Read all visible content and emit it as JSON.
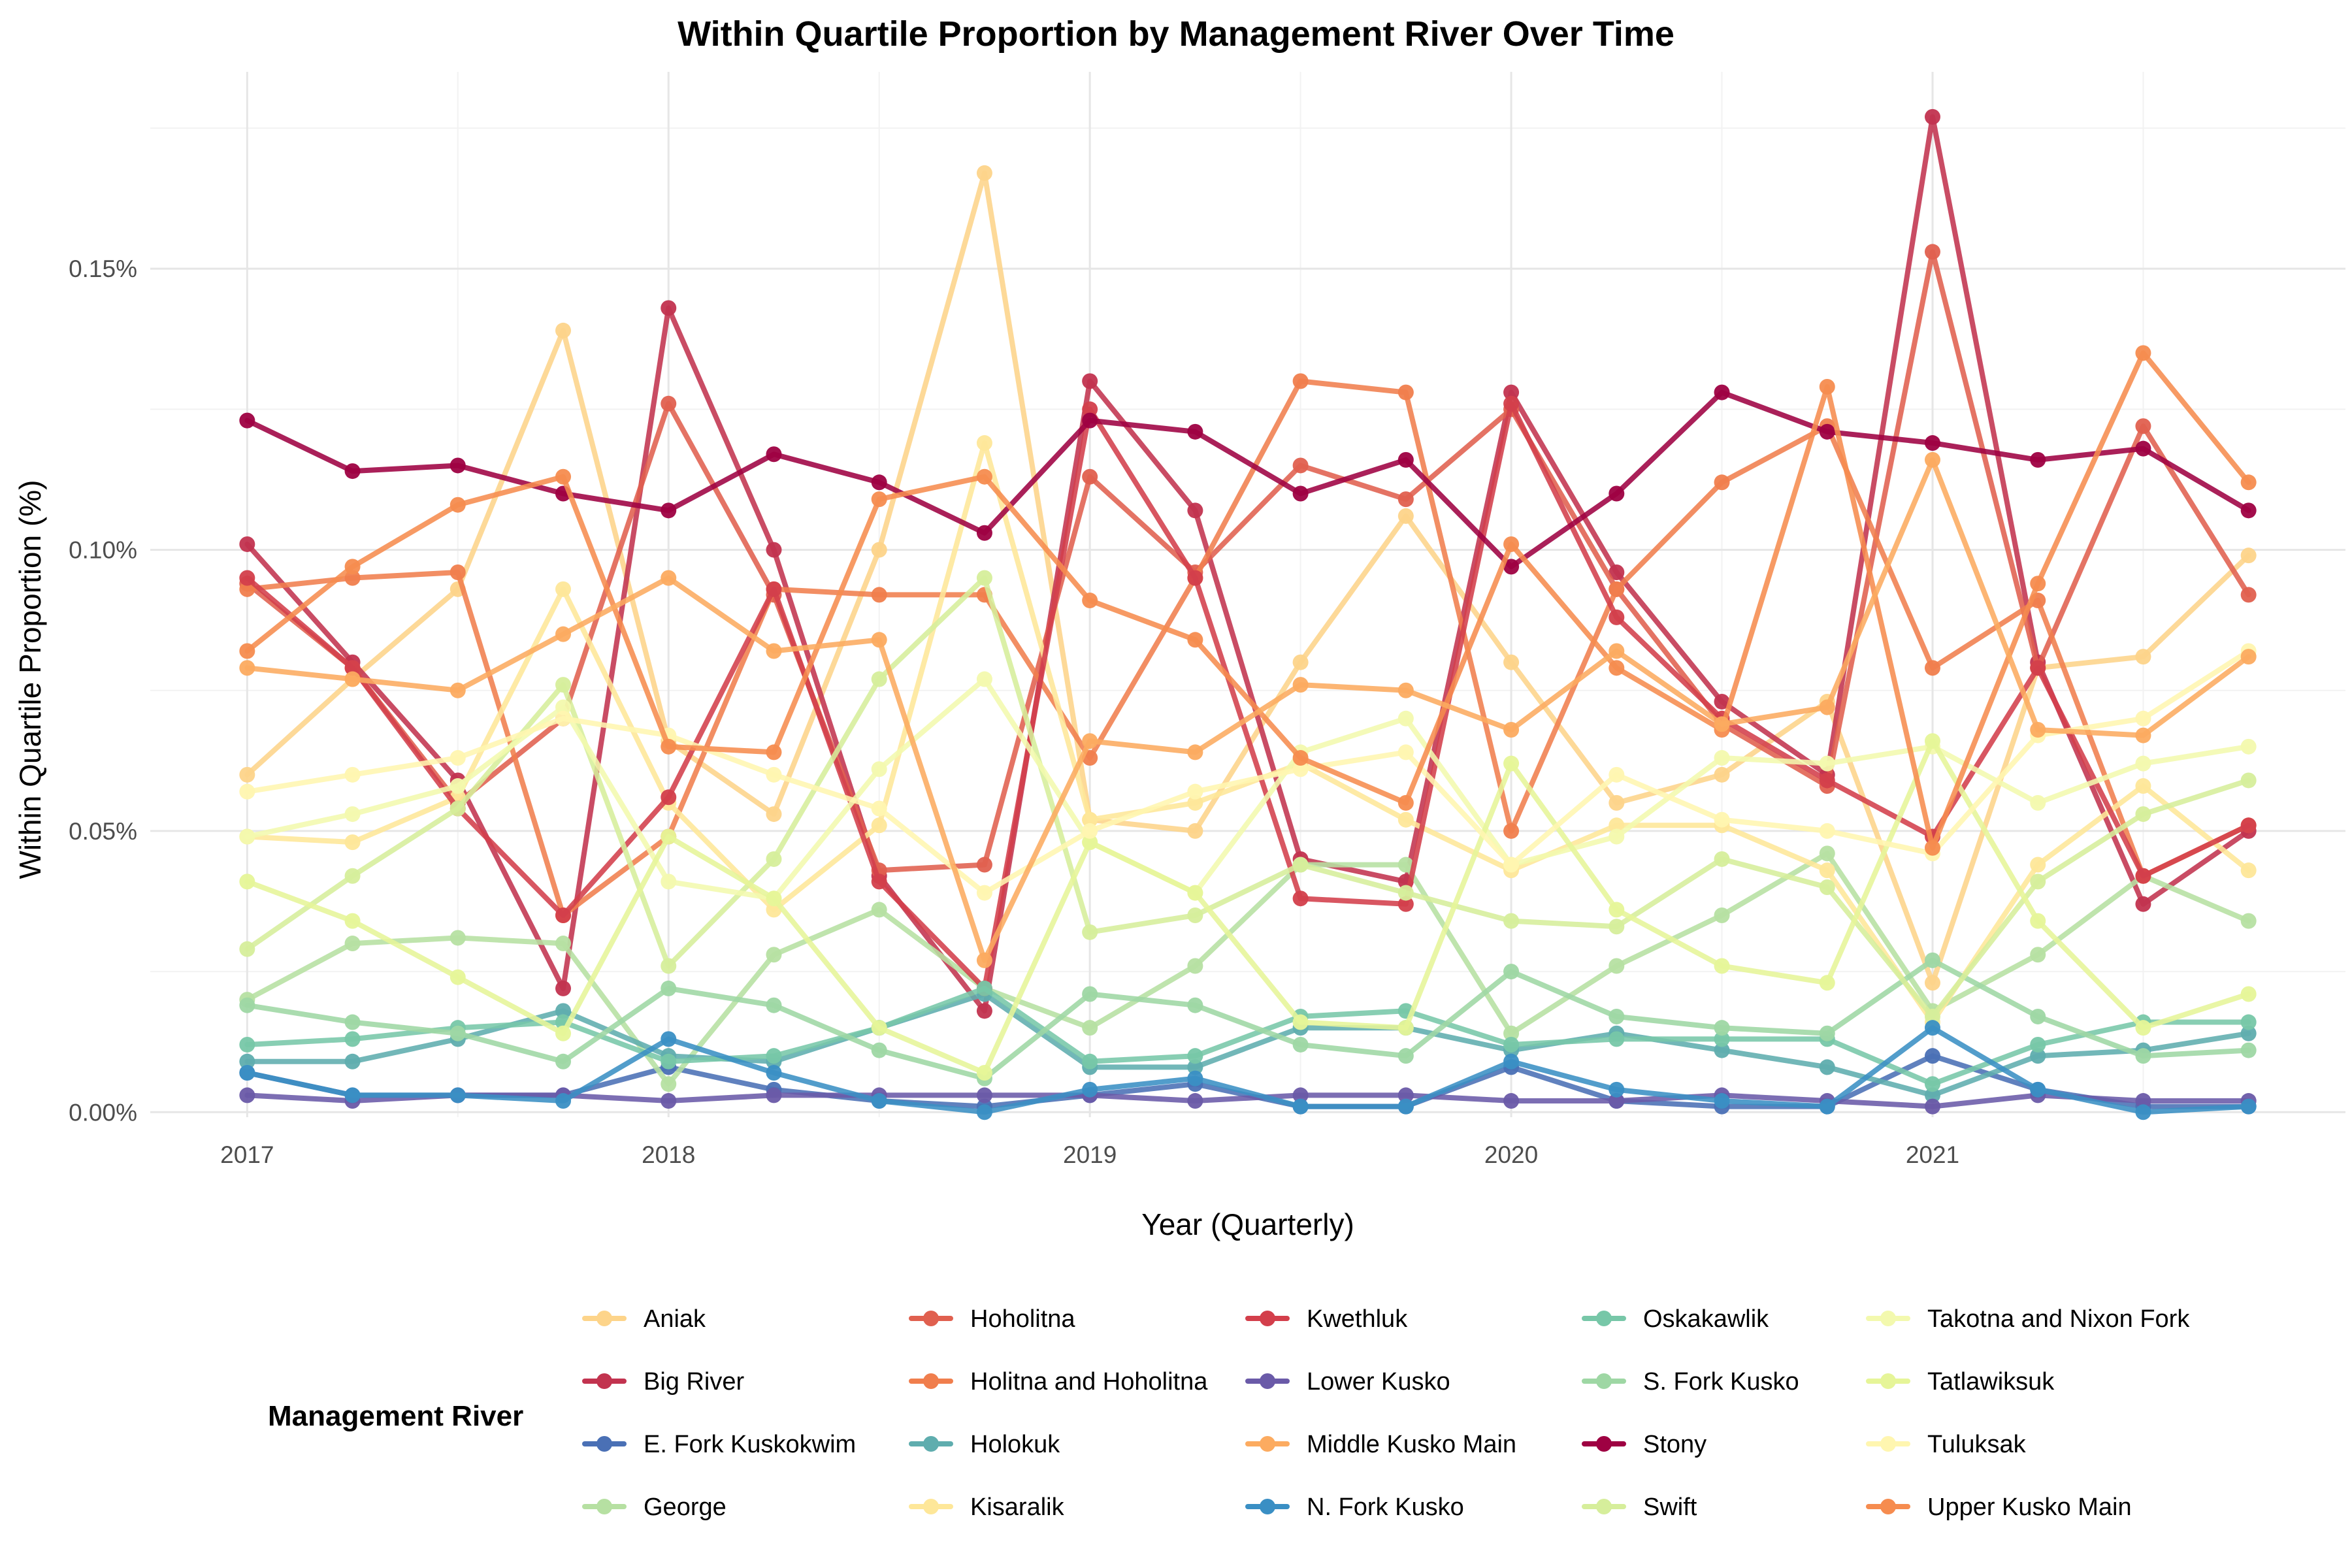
{
  "chart_data": {
    "type": "line",
    "title": "Within Quartile Proportion by Management River Over Time",
    "xlabel": "Year (Quarterly)",
    "ylabel": "Within Quartile Proportion (%)",
    "legend_title": "Management River",
    "legend_position": "bottom",
    "grid": true,
    "x": [
      2017.0,
      2017.25,
      2017.5,
      2017.75,
      2018.0,
      2018.25,
      2018.5,
      2018.75,
      2019.0,
      2019.25,
      2019.5,
      2019.75,
      2020.0,
      2020.25,
      2020.5,
      2020.75,
      2021.0,
      2021.25,
      2021.5,
      2021.75
    ],
    "xlim": [
      2016.77,
      2021.98
    ],
    "ylim": [
      -0.0009,
      0.185
    ],
    "x_ticks": [
      2017,
      2018,
      2019,
      2020,
      2021
    ],
    "x_tick_labels": [
      "2017",
      "2018",
      "2019",
      "2020",
      "2021"
    ],
    "y_ticks": [
      0.0,
      0.05,
      0.1,
      0.15
    ],
    "y_tick_labels": [
      "0.00%",
      "0.05%",
      "0.10%",
      "0.15%"
    ],
    "series": [
      {
        "name": "Aniak",
        "color": "#fdd48a",
        "values": [
          0.06,
          0.077,
          0.093,
          0.139,
          0.066,
          0.053,
          0.1,
          0.167,
          0.052,
          0.05,
          0.08,
          0.106,
          0.08,
          0.055,
          0.06,
          0.073,
          0.023,
          0.079,
          0.081,
          0.099
        ]
      },
      {
        "name": "Big River",
        "color": "#c2334f",
        "values": [
          0.101,
          0.08,
          0.059,
          0.022,
          0.143,
          0.1,
          0.042,
          0.018,
          0.13,
          0.107,
          0.045,
          0.041,
          0.128,
          0.096,
          0.073,
          0.06,
          0.177,
          0.08,
          0.037,
          0.05
        ]
      },
      {
        "name": "E. Fork Kuskokwim",
        "color": "#4a70b5",
        "values": [
          0.007,
          0.003,
          0.003,
          0.003,
          0.008,
          0.004,
          0.002,
          0.001,
          0.003,
          0.005,
          0.001,
          0.001,
          0.008,
          0.002,
          0.001,
          0.001,
          0.01,
          0.004,
          0.001,
          0.001
        ]
      },
      {
        "name": "George",
        "color": "#b6e0a2",
        "values": [
          0.02,
          0.03,
          0.031,
          0.03,
          0.005,
          0.028,
          0.036,
          0.022,
          0.015,
          0.026,
          0.044,
          0.044,
          0.014,
          0.026,
          0.035,
          0.046,
          0.018,
          0.028,
          0.042,
          0.034
        ]
      },
      {
        "name": "Hoholitna",
        "color": "#e0604f",
        "values": [
          0.094,
          0.079,
          0.055,
          0.07,
          0.126,
          0.092,
          0.043,
          0.044,
          0.113,
          0.096,
          0.115,
          0.109,
          0.125,
          0.093,
          0.069,
          0.058,
          0.153,
          0.079,
          0.122,
          0.092
        ]
      },
      {
        "name": "Holitna and Hoholitna",
        "color": "#f07e4d",
        "values": [
          0.093,
          0.095,
          0.096,
          0.035,
          0.049,
          0.093,
          0.092,
          0.092,
          0.063,
          0.095,
          0.13,
          0.128,
          0.05,
          0.093,
          0.112,
          0.122,
          0.079,
          0.091,
          0.042,
          0.051
        ]
      },
      {
        "name": "Holokuk",
        "color": "#5fadae",
        "values": [
          0.009,
          0.009,
          0.013,
          0.018,
          0.01,
          0.009,
          0.015,
          0.021,
          0.008,
          0.008,
          0.015,
          0.015,
          0.011,
          0.014,
          0.011,
          0.008,
          0.003,
          0.01,
          0.011,
          0.014
        ]
      },
      {
        "name": "Kisaralik",
        "color": "#fee799",
        "values": [
          0.049,
          0.048,
          0.056,
          0.093,
          0.055,
          0.036,
          0.051,
          0.119,
          0.052,
          0.055,
          0.062,
          0.052,
          0.043,
          0.051,
          0.051,
          0.043,
          0.016,
          0.044,
          0.058,
          0.043
        ]
      },
      {
        "name": "Kwethluk",
        "color": "#d33f4b",
        "values": [
          0.095,
          0.079,
          0.054,
          0.035,
          0.056,
          0.093,
          0.041,
          0.022,
          0.125,
          0.095,
          0.038,
          0.037,
          0.126,
          0.088,
          0.07,
          0.059,
          0.049,
          0.079,
          0.042,
          0.051
        ]
      },
      {
        "name": "Lower Kusko",
        "color": "#6a5aa8",
        "values": [
          0.003,
          0.002,
          0.003,
          0.003,
          0.002,
          0.003,
          0.003,
          0.003,
          0.003,
          0.002,
          0.003,
          0.003,
          0.002,
          0.002,
          0.003,
          0.002,
          0.001,
          0.003,
          0.002,
          0.002
        ]
      },
      {
        "name": "Oskakawlik",
        "color": "#77c7a8",
        "values": [
          0.012,
          0.013,
          0.015,
          0.016,
          0.009,
          0.01,
          0.015,
          0.022,
          0.009,
          0.01,
          0.017,
          0.018,
          0.012,
          0.013,
          0.013,
          0.013,
          0.005,
          0.012,
          0.016,
          0.016
        ]
      },
      {
        "name": "S. Fork Kusko",
        "color": "#9ed7a4",
        "values": [
          0.019,
          0.016,
          0.014,
          0.009,
          0.022,
          0.019,
          0.011,
          0.006,
          0.021,
          0.019,
          0.012,
          0.01,
          0.025,
          0.017,
          0.015,
          0.014,
          0.027,
          0.017,
          0.01,
          0.011
        ]
      },
      {
        "name": "Stony",
        "color": "#9e0142",
        "values": [
          0.123,
          0.114,
          0.115,
          0.11,
          0.107,
          0.117,
          0.112,
          0.103,
          0.123,
          0.121,
          0.11,
          0.116,
          0.097,
          0.11,
          0.128,
          0.121,
          0.119,
          0.116,
          0.118,
          0.107
        ]
      },
      {
        "name": "Swift",
        "color": "#d6ee9b",
        "values": [
          0.029,
          0.042,
          0.054,
          0.076,
          0.026,
          0.045,
          0.077,
          0.095,
          0.032,
          0.035,
          0.044,
          0.039,
          0.034,
          0.033,
          0.045,
          0.04,
          0.017,
          0.041,
          0.053,
          0.059
        ]
      },
      {
        "name": "Takotna and Nixon Fork",
        "color": "#f3f9ae",
        "values": [
          0.049,
          0.053,
          0.058,
          0.072,
          0.041,
          0.038,
          0.061,
          0.077,
          0.048,
          0.039,
          0.064,
          0.07,
          0.044,
          0.049,
          0.063,
          0.062,
          0.065,
          0.055,
          0.062,
          0.065
        ]
      },
      {
        "name": "Tatlawiksuk",
        "color": "#e6f598",
        "values": [
          0.041,
          0.034,
          0.024,
          0.014,
          0.049,
          0.038,
          0.015,
          0.007,
          0.048,
          0.039,
          0.016,
          0.015,
          0.062,
          0.036,
          0.026,
          0.023,
          0.066,
          0.034,
          0.015,
          0.021
        ]
      },
      {
        "name": "Tuluksak",
        "color": "#fff6b0",
        "values": [
          0.057,
          0.06,
          0.063,
          0.07,
          0.067,
          0.06,
          0.054,
          0.039,
          0.05,
          0.057,
          0.061,
          0.064,
          0.044,
          0.06,
          0.052,
          0.05,
          0.046,
          0.067,
          0.07,
          0.082
        ]
      },
      {
        "name": "Upper Kusko Main",
        "color": "#f68c4f",
        "values": [
          0.082,
          0.097,
          0.108,
          0.113,
          0.065,
          0.064,
          0.109,
          0.113,
          0.091,
          0.084,
          0.063,
          0.055,
          0.101,
          0.079,
          0.068,
          0.129,
          0.047,
          0.094,
          0.135,
          0.112
        ]
      },
      {
        "name": "Middle Kusko Main",
        "color": "#fcab60",
        "values": [
          0.079,
          0.077,
          0.075,
          0.085,
          0.095,
          0.082,
          0.084,
          0.027,
          0.066,
          0.064,
          0.076,
          0.075,
          0.068,
          0.082,
          0.069,
          0.072,
          0.116,
          0.068,
          0.067,
          0.081
        ]
      },
      {
        "name": "N. Fork Kusko",
        "color": "#3a8fc4",
        "values": [
          0.007,
          0.003,
          0.003,
          0.002,
          0.013,
          0.007,
          0.002,
          0.0,
          0.004,
          0.006,
          0.001,
          0.001,
          0.009,
          0.004,
          0.002,
          0.001,
          0.015,
          0.004,
          0.0,
          0.001
        ]
      }
    ],
    "legend_order": [
      "Aniak",
      "Big River",
      "E. Fork Kuskokwim",
      "George",
      "Hoholitna",
      "Holitna and Hoholitna",
      "Holokuk",
      "Kisaralik",
      "Kwethluk",
      "Lower Kusko",
      "Middle Kusko Main",
      "N. Fork Kusko",
      "Oskakawlik",
      "S. Fork Kusko",
      "Stony",
      "Swift",
      "Takotna and Nixon Fork",
      "Tatlawiksuk",
      "Tuluksak",
      "Upper Kusko Main"
    ]
  }
}
